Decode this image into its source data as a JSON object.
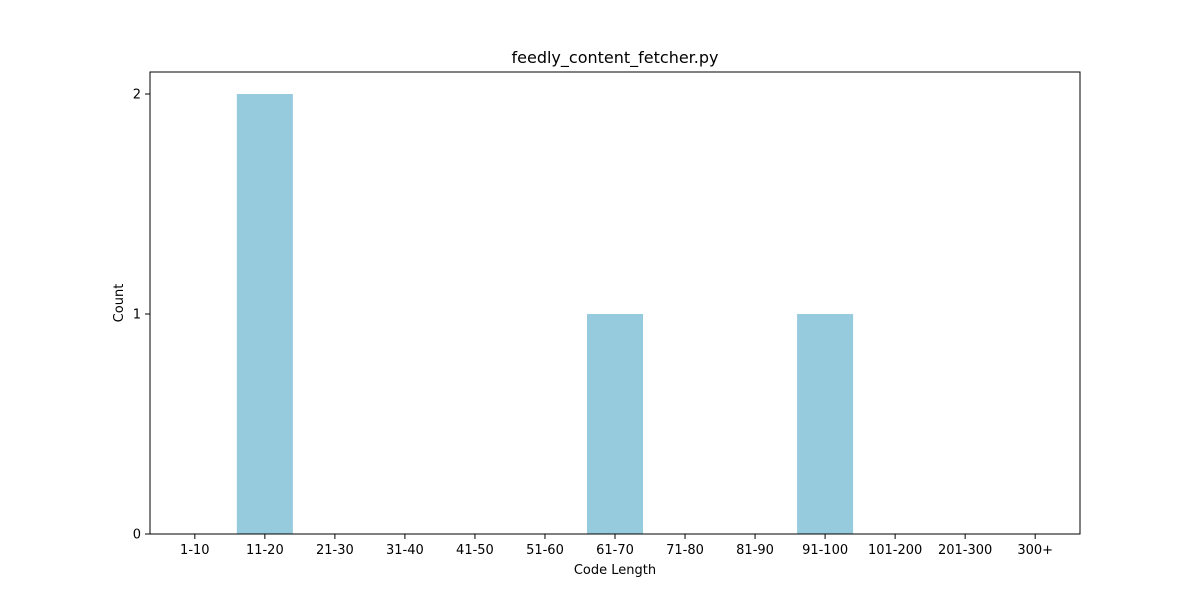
{
  "chart_data": {
    "type": "bar",
    "title": "feedly_content_fetcher.py",
    "xlabel": "Code Length",
    "ylabel": "Count",
    "categories": [
      "1-10",
      "11-20",
      "21-30",
      "31-40",
      "41-50",
      "51-60",
      "61-70",
      "71-80",
      "81-90",
      "91-100",
      "101-200",
      "201-300",
      "300+"
    ],
    "values": [
      0,
      2,
      0,
      0,
      0,
      0,
      1,
      0,
      0,
      1,
      0,
      0,
      0
    ],
    "yticks": [
      "0",
      "1",
      "2"
    ],
    "ylim": [
      0,
      2.1
    ],
    "grid": false,
    "bar_color": "#96cadd"
  }
}
